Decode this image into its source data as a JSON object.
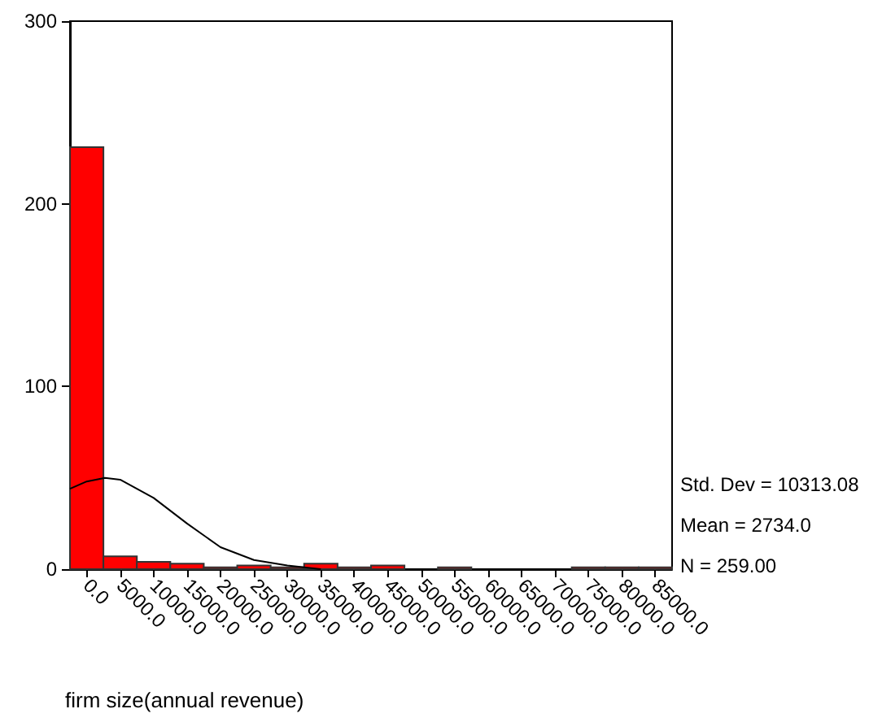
{
  "chart_data": {
    "type": "histogram",
    "xlabel": "firm size(annual revenue)",
    "bins": [
      -2500,
      2500,
      7500,
      12500,
      17500,
      22500,
      27500,
      32500,
      37500,
      42500,
      47500,
      52500,
      57500,
      62500,
      67500,
      72500,
      77500,
      82500,
      87500
    ],
    "values": [
      231,
      7,
      4,
      3,
      1,
      2,
      1,
      3,
      1,
      2,
      0,
      1,
      0,
      0,
      0,
      1,
      1,
      1
    ],
    "color": "#ff0000",
    "series": [
      {
        "type": "line",
        "color": "#000000",
        "x": [
          -2500,
          0,
          2734,
          5000,
          10000,
          15000,
          20000,
          25000,
          30000,
          35000
        ],
        "values": [
          44,
          48,
          50,
          49,
          39,
          25,
          12,
          5,
          2,
          0
        ]
      }
    ],
    "xlim": [
      -2500,
      87500
    ],
    "xticks": [
      {
        "value": 0,
        "label": "0.0"
      },
      {
        "value": 5000,
        "label": "5000.0"
      },
      {
        "value": 10000,
        "label": "10000.0"
      },
      {
        "value": 15000,
        "label": "15000.0"
      },
      {
        "value": 20000,
        "label": "20000.0"
      },
      {
        "value": 25000,
        "label": "25000.0"
      },
      {
        "value": 30000,
        "label": "30000.0"
      },
      {
        "value": 35000,
        "label": "35000.0"
      },
      {
        "value": 40000,
        "label": "40000.0"
      },
      {
        "value": 45000,
        "label": "45000.0"
      },
      {
        "value": 50000,
        "label": "50000.0"
      },
      {
        "value": 55000,
        "label": "55000.0"
      },
      {
        "value": 60000,
        "label": "60000.0"
      },
      {
        "value": 65000,
        "label": "65000.0"
      },
      {
        "value": 70000,
        "label": "70000.0"
      },
      {
        "value": 75000,
        "label": "75000.0"
      },
      {
        "value": 80000,
        "label": "80000.0"
      },
      {
        "value": 85000,
        "label": "85000.0"
      }
    ],
    "ylim": [
      0,
      300
    ],
    "yticks": [
      0,
      100,
      200,
      300
    ],
    "grid": false,
    "annotations": [
      "Std. Dev = 10313.08",
      "Mean = 2734.0",
      "N = 259.00"
    ]
  }
}
